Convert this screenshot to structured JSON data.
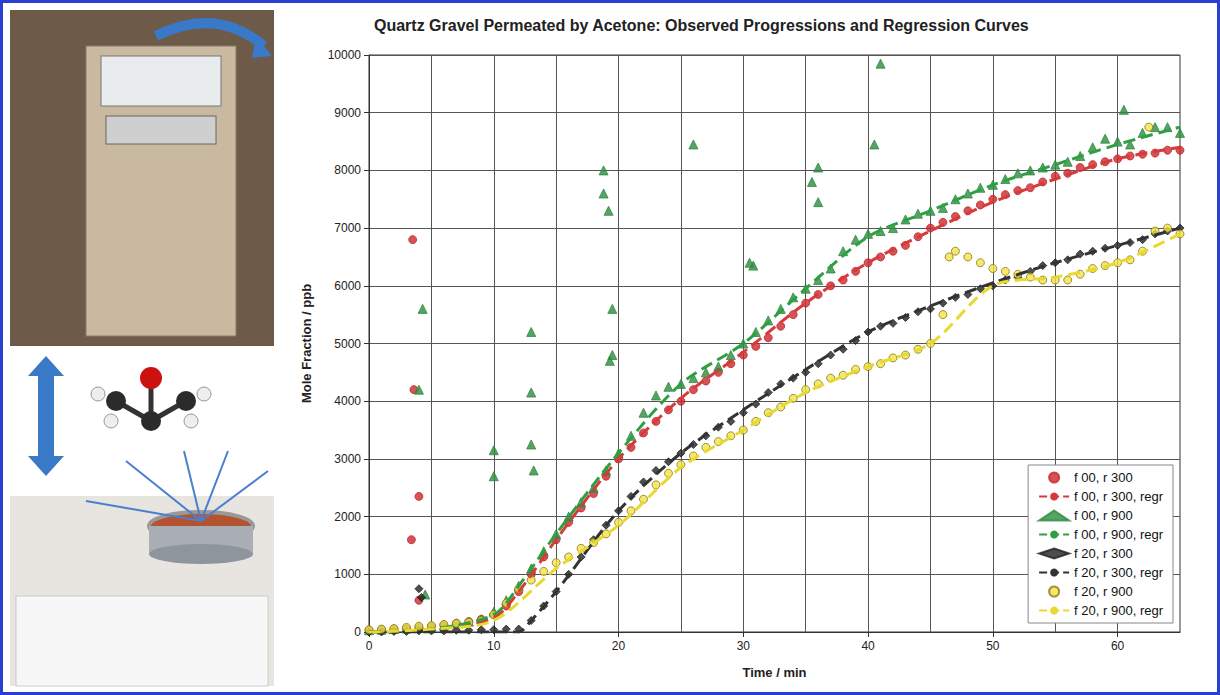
{
  "chart_data": {
    "type": "scatter",
    "title": "Quartz Gravel Permeated by Acetone: Observed Progressions and Regression Curves",
    "x_label": "Time / min",
    "y_label": "Mole Fraction / ppb",
    "xlim": [
      0,
      65
    ],
    "xticks": [
      0,
      10,
      20,
      30,
      40,
      50,
      60
    ],
    "ylim": [
      0,
      10000
    ],
    "yticks": [
      0,
      1000,
      2000,
      3000,
      4000,
      5000,
      6000,
      7000,
      8000,
      9000,
      10000
    ],
    "grid": true,
    "legend": "lower right",
    "series": [
      {
        "name": "f 00, r 300",
        "type": "scatter",
        "marker": "circle",
        "color": "#c8282d",
        "x": [
          3.5,
          3.6,
          3.4,
          4.0,
          4.0,
          0,
          1,
          2,
          3,
          4,
          5,
          6,
          7,
          8,
          9,
          10,
          11,
          12,
          13,
          14,
          15,
          16,
          17,
          18,
          19,
          20,
          21,
          22,
          23,
          24,
          25,
          26,
          27,
          28,
          29,
          30,
          31,
          32,
          33,
          34,
          35,
          36,
          37,
          38,
          39,
          40,
          41,
          42,
          43,
          44,
          45,
          46,
          47,
          48,
          49,
          50,
          51,
          52,
          53,
          54,
          55,
          56,
          57,
          58,
          59,
          60,
          61,
          62,
          63,
          64,
          65
        ],
        "values": [
          6800,
          4200,
          1600,
          2350,
          550,
          30,
          40,
          50,
          60,
          80,
          100,
          120,
          150,
          180,
          220,
          300,
          450,
          700,
          1000,
          1300,
          1600,
          1900,
          2150,
          2400,
          2700,
          3000,
          3200,
          3450,
          3650,
          3850,
          4000,
          4200,
          4350,
          4500,
          4650,
          4800,
          4950,
          5100,
          5300,
          5500,
          5700,
          5850,
          6000,
          6100,
          6250,
          6400,
          6500,
          6600,
          6700,
          6850,
          7000,
          7100,
          7200,
          7300,
          7400,
          7500,
          7580,
          7650,
          7700,
          7800,
          7900,
          7950,
          8050,
          8100,
          8150,
          8200,
          8250,
          8280,
          8300,
          8350,
          8350
        ]
      },
      {
        "name": "f 00, r 300, regr",
        "type": "line",
        "line_style": "dashed",
        "color": "#d63a3a",
        "x": [
          0,
          5,
          10,
          12,
          15,
          20,
          25,
          30,
          35,
          40,
          45,
          50,
          55,
          60,
          65
        ],
        "values": [
          0,
          50,
          250,
          700,
          1600,
          3000,
          4050,
          4850,
          5700,
          6400,
          6950,
          7450,
          7850,
          8200,
          8400
        ]
      },
      {
        "name": "f 00, r 900",
        "type": "scatter",
        "marker": "triangle",
        "color": "#2e8b3e",
        "x": [
          4.0,
          4.3,
          4.5,
          10,
          10,
          13,
          13,
          13,
          13.2,
          18.8,
          18.8,
          19.2,
          19.3,
          19.5,
          19.5,
          26,
          30.5,
          30.8,
          35.5,
          36,
          36,
          40.5,
          41,
          60.5,
          0,
          1,
          2,
          3,
          4,
          5,
          6,
          7,
          8,
          9,
          10,
          11,
          12,
          13,
          14,
          15,
          16,
          17,
          18,
          19,
          20,
          21,
          22,
          23,
          24,
          25,
          26,
          27,
          28,
          29,
          30,
          31,
          32,
          33,
          34,
          35,
          36,
          37,
          38,
          39,
          40,
          41,
          42,
          43,
          44,
          45,
          46,
          47,
          48,
          49,
          50,
          51,
          52,
          53,
          54,
          55,
          56,
          57,
          58,
          59,
          60,
          61,
          62,
          63,
          64,
          65
        ],
        "values": [
          4200,
          5600,
          650,
          3150,
          2700,
          5200,
          4150,
          3250,
          2800,
          8000,
          7600,
          7300,
          4700,
          5600,
          4800,
          8450,
          6400,
          6350,
          7800,
          8050,
          7450,
          8450,
          9850,
          9050,
          30,
          40,
          50,
          60,
          80,
          100,
          120,
          150,
          180,
          220,
          350,
          550,
          800,
          1100,
          1400,
          1700,
          2000,
          2250,
          2500,
          2800,
          3100,
          3400,
          3800,
          4100,
          4250,
          4300,
          4400,
          4500,
          4600,
          4800,
          5000,
          5200,
          5400,
          5600,
          5800,
          5950,
          6100,
          6300,
          6600,
          6800,
          6900,
          6950,
          7000,
          7150,
          7250,
          7300,
          7350,
          7500,
          7600,
          7700,
          7750,
          7850,
          7950,
          8000,
          8050,
          8100,
          8150,
          8250,
          8400,
          8550,
          8500,
          8450,
          8650,
          8750,
          8750,
          8650
        ]
      },
      {
        "name": "f 00, r 900, regr",
        "type": "line",
        "line_style": "dashed",
        "color": "#2ea043",
        "x": [
          0,
          5,
          10,
          12,
          15,
          20,
          25,
          30,
          35,
          40,
          45,
          50,
          55,
          60,
          65
        ],
        "values": [
          0,
          50,
          300,
          800,
          1700,
          3100,
          4300,
          5000,
          5950,
          6850,
          7300,
          7750,
          8100,
          8450,
          8750
        ]
      },
      {
        "name": "f 20, r 300",
        "type": "scatter",
        "marker": "diamond",
        "color": "#222222",
        "x": [
          4.0,
          4.2,
          0,
          1,
          2,
          3,
          4,
          5,
          6,
          7,
          8,
          9,
          10,
          11,
          12,
          13,
          14,
          15,
          16,
          17,
          18,
          19,
          20,
          21,
          22,
          23,
          24,
          25,
          26,
          27,
          28,
          29,
          30,
          31,
          32,
          33,
          34,
          35,
          36,
          37,
          38,
          39,
          40,
          41,
          42,
          43,
          44,
          45,
          46,
          47,
          48,
          49,
          50,
          51,
          52,
          53,
          54,
          55,
          56,
          57,
          58,
          59,
          60,
          61,
          62,
          63,
          64,
          65
        ],
        "values": [
          750,
          600,
          0,
          0,
          10,
          10,
          20,
          20,
          20,
          30,
          30,
          40,
          40,
          50,
          50,
          200,
          450,
          700,
          1000,
          1300,
          1600,
          1850,
          2100,
          2350,
          2600,
          2800,
          2950,
          3100,
          3250,
          3400,
          3550,
          3650,
          3800,
          3950,
          4150,
          4300,
          4400,
          4500,
          4650,
          4800,
          4900,
          5050,
          5200,
          5300,
          5350,
          5450,
          5550,
          5600,
          5700,
          5800,
          5850,
          5950,
          6000,
          6100,
          6150,
          6250,
          6350,
          6400,
          6450,
          6550,
          6600,
          6650,
          6700,
          6750,
          6800,
          6900,
          6950,
          7000
        ]
      },
      {
        "name": "f 20, r 300, regr",
        "type": "line",
        "line_style": "dashed",
        "color": "#333333",
        "x": [
          0,
          5,
          10,
          12,
          13,
          15,
          20,
          25,
          30,
          35,
          40,
          45,
          50,
          55,
          60,
          65
        ],
        "values": [
          0,
          0,
          0,
          0,
          200,
          700,
          2100,
          3100,
          3850,
          4550,
          5200,
          5650,
          6050,
          6400,
          6700,
          7000
        ]
      },
      {
        "name": "f 20, r 900",
        "type": "scatter",
        "marker": "circle",
        "color": "#f2e24a",
        "x": [
          0,
          1,
          2,
          3,
          4,
          5,
          6,
          7,
          8,
          9,
          10,
          11,
          12,
          13,
          14,
          15,
          16,
          17,
          18,
          19,
          20,
          21,
          22,
          23,
          24,
          25,
          26,
          27,
          28,
          29,
          30,
          31,
          32,
          33,
          34,
          35,
          36,
          37,
          38,
          39,
          40,
          41,
          42,
          43,
          44,
          45,
          46,
          46.5,
          47,
          48,
          49,
          50,
          51,
          52,
          53,
          54,
          55,
          56,
          57,
          58,
          59,
          60,
          61,
          62,
          62.5,
          63,
          64,
          65
        ],
        "values": [
          40,
          50,
          60,
          80,
          100,
          110,
          130,
          150,
          170,
          200,
          300,
          500,
          750,
          900,
          1050,
          1200,
          1300,
          1450,
          1550,
          1700,
          1900,
          2100,
          2300,
          2550,
          2750,
          2900,
          3050,
          3200,
          3300,
          3400,
          3500,
          3650,
          3800,
          3900,
          4050,
          4200,
          4300,
          4400,
          4450,
          4550,
          4600,
          4650,
          4750,
          4800,
          4900,
          5000,
          5500,
          6500,
          6600,
          6500,
          6400,
          6300,
          6250,
          6200,
          6150,
          6100,
          6100,
          6100,
          6200,
          6300,
          6350,
          6400,
          6450,
          6600,
          8750,
          6950,
          7000,
          6900
        ]
      },
      {
        "name": "f 20, r 900, regr",
        "type": "line",
        "line_style": "dashed",
        "color": "#e8d830",
        "x": [
          0,
          5,
          10,
          15,
          20,
          25,
          30,
          35,
          40,
          45,
          50,
          55,
          60,
          65
        ],
        "values": [
          0,
          50,
          200,
          1100,
          1850,
          2850,
          3500,
          4150,
          4600,
          5000,
          6000,
          6150,
          6400,
          6900
        ]
      }
    ]
  }
}
